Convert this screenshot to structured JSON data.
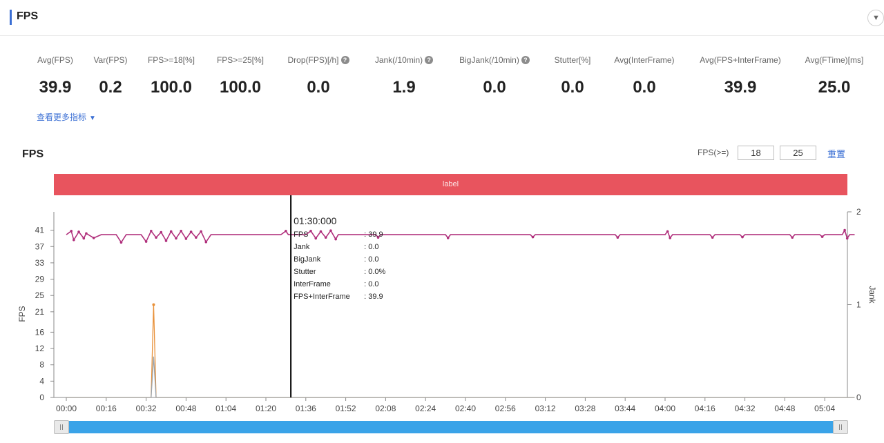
{
  "section": {
    "title": "FPS"
  },
  "metrics": [
    {
      "label": "Avg(FPS)",
      "value": "39.9",
      "help": false
    },
    {
      "label": "Var(FPS)",
      "value": "0.2",
      "help": false
    },
    {
      "label": "FPS>=18[%]",
      "value": "100.0",
      "help": false
    },
    {
      "label": "FPS>=25[%]",
      "value": "100.0",
      "help": false
    },
    {
      "label": "Drop(FPS)[/h]",
      "value": "0.0",
      "help": true
    },
    {
      "label": "Jank(/10min)",
      "value": "1.9",
      "help": true
    },
    {
      "label": "BigJank(/10min)",
      "value": "0.0",
      "help": true
    },
    {
      "label": "Stutter[%]",
      "value": "0.0",
      "help": false
    },
    {
      "label": "Avg(InterFrame)",
      "value": "0.0",
      "help": false
    },
    {
      "label": "Avg(FPS+InterFrame)",
      "value": "39.9",
      "help": false
    },
    {
      "label": "Avg(FTime)[ms]",
      "value": "25.0",
      "help": false
    }
  ],
  "more_metrics_label": "查看更多指标",
  "chart_header": {
    "title": "FPS",
    "threshold_label": "FPS(>=)",
    "threshold_low": "18",
    "threshold_high": "25",
    "reset_label": "重置"
  },
  "banner": {
    "label": "label",
    "color": "#e8545e"
  },
  "tooltip": {
    "time": "01:30:000",
    "rows": [
      {
        "key": "FPS",
        "value": ": 39.9"
      },
      {
        "key": "Jank",
        "value": ": 0.0"
      },
      {
        "key": "BigJank",
        "value": ": 0.0"
      },
      {
        "key": "Stutter",
        "value": ": 0.0%"
      },
      {
        "key": "InterFrame",
        "value": ": 0.0"
      },
      {
        "key": "FPS+InterFrame",
        "value": ": 39.9"
      }
    ]
  },
  "chart_data": {
    "type": "line",
    "ylabel": "FPS",
    "y2label": "Jank",
    "y_ticks": [
      0,
      4,
      8,
      12,
      16,
      21,
      25,
      29,
      33,
      37,
      41
    ],
    "y2_ticks": [
      0,
      1,
      2
    ],
    "x_ticks": [
      "00:00",
      "00:16",
      "00:32",
      "00:48",
      "01:04",
      "01:20",
      "01:36",
      "01:52",
      "02:08",
      "02:24",
      "02:40",
      "02:56",
      "03:12",
      "03:28",
      "03:44",
      "04:00",
      "04:16",
      "04:32",
      "04:48",
      "05:04"
    ],
    "x_range_seconds": [
      0,
      316
    ],
    "cursor_seconds": 90,
    "series": [
      {
        "color": "#b0307c",
        "base": 39.9,
        "points": [
          [
            0,
            39.9
          ],
          [
            2,
            40.8
          ],
          [
            3,
            38.6
          ],
          [
            5,
            40.6
          ],
          [
            7,
            39.0
          ],
          [
            8,
            40.2
          ],
          [
            11,
            39.1
          ],
          [
            14,
            39.9
          ],
          [
            20,
            39.9
          ],
          [
            22,
            38.0
          ],
          [
            24,
            39.9
          ],
          [
            30,
            39.9
          ],
          [
            32,
            38.2
          ],
          [
            34,
            40.8
          ],
          [
            36,
            39.2
          ],
          [
            38,
            40.5
          ],
          [
            40,
            38.4
          ],
          [
            42,
            40.7
          ],
          [
            44,
            39.0
          ],
          [
            46,
            40.8
          ],
          [
            48,
            38.9
          ],
          [
            50,
            40.6
          ],
          [
            52,
            39.2
          ],
          [
            54,
            40.7
          ],
          [
            56,
            38.1
          ],
          [
            58,
            39.9
          ],
          [
            86,
            39.9
          ],
          [
            88,
            40.8
          ],
          [
            89,
            39.9
          ],
          [
            96,
            39.9
          ],
          [
            98,
            40.8
          ],
          [
            100,
            39.0
          ],
          [
            102,
            40.7
          ],
          [
            104,
            39.2
          ],
          [
            106,
            40.9
          ],
          [
            108,
            38.8
          ],
          [
            109,
            39.9
          ],
          [
            124,
            39.9
          ],
          [
            125,
            39.2
          ],
          [
            126,
            39.9
          ],
          [
            152,
            39.9
          ],
          [
            153,
            39.1
          ],
          [
            154,
            39.9
          ],
          [
            186,
            39.9
          ],
          [
            187,
            39.3
          ],
          [
            188,
            39.9
          ],
          [
            220,
            39.9
          ],
          [
            221,
            39.2
          ],
          [
            222,
            39.9
          ],
          [
            240,
            39.9
          ],
          [
            241,
            40.7
          ],
          [
            242,
            39.1
          ],
          [
            243,
            39.9
          ],
          [
            258,
            39.9
          ],
          [
            259,
            39.2
          ],
          [
            260,
            39.9
          ],
          [
            270,
            39.9
          ],
          [
            271,
            39.3
          ],
          [
            272,
            39.9
          ],
          [
            290,
            39.9
          ],
          [
            291,
            39.2
          ],
          [
            292,
            39.9
          ],
          [
            302,
            39.9
          ],
          [
            303,
            39.4
          ],
          [
            304,
            39.9
          ],
          [
            311,
            39.9
          ],
          [
            312,
            41.0
          ],
          [
            313,
            39.0
          ],
          [
            314,
            39.9
          ],
          [
            316,
            39.9
          ]
        ]
      },
      {
        "color": "#e8913a",
        "axis": "right",
        "points": [
          [
            0,
            0
          ],
          [
            34,
            0
          ],
          [
            35,
            1.0
          ],
          [
            36,
            0
          ],
          [
            316,
            0
          ]
        ]
      },
      {
        "color": "#9aa4ad",
        "axis": "right",
        "points": [
          [
            0,
            0
          ],
          [
            34,
            0
          ],
          [
            35,
            0.44
          ],
          [
            36,
            0
          ],
          [
            316,
            0
          ]
        ]
      }
    ]
  }
}
